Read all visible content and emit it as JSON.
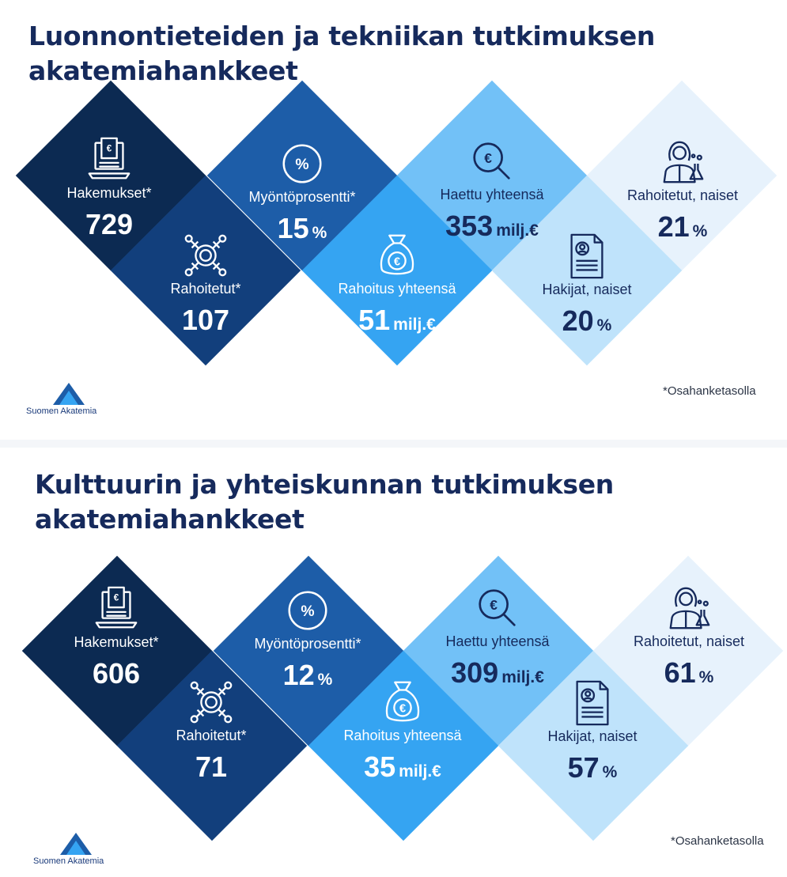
{
  "colors": {
    "navy": "#0c2a52",
    "dark_blue": "#123f7c",
    "blue": "#1d67b2",
    "bright_blue": "#35a4f2",
    "sky": "#72c1f7",
    "light_sky": "#bfe3fb",
    "pale": "#e7f2fc",
    "title": "#162a5c"
  },
  "panels": [
    {
      "title_line1": "Luonnontieteiden ja tekniikan tutkimuksen",
      "title_line2": "akatemiahankkeet",
      "hakemukset": {
        "label": "Hakemukset*",
        "value": "729",
        "icon": "laptop-invoice-icon"
      },
      "rahoitetut": {
        "label": "Rahoitetut*",
        "value": "107",
        "icon": "network-nodes-icon"
      },
      "myontoprosentti": {
        "label": "Myöntöprosentti*",
        "value": "15",
        "unit": "%",
        "icon": "percent-circle-icon"
      },
      "rahoitus_yhteensa": {
        "label": "Rahoitus yhteensä",
        "value": "51",
        "unit": "milj.€",
        "icon": "money-bag-icon"
      },
      "haettu_yhteensa": {
        "label": "Haettu yhteensä",
        "value": "353",
        "unit": "milj.€",
        "icon": "euro-search-icon"
      },
      "hakijat_naiset": {
        "label": "Hakijat, naiset",
        "value": "20",
        "unit": "%",
        "icon": "document-profile-icon"
      },
      "rahoitetut_naiset": {
        "label": "Rahoitetut, naiset",
        "value": "21",
        "unit": "%",
        "icon": "woman-scientist-icon"
      },
      "footnote": "*Osahanketasolla",
      "logo_text": "Suomen Akatemia"
    },
    {
      "title_line1": "Kulttuurin ja yhteiskunnan tutkimuksen",
      "title_line2": "akatemiahankkeet",
      "hakemukset": {
        "label": "Hakemukset*",
        "value": "606",
        "icon": "laptop-invoice-icon"
      },
      "rahoitetut": {
        "label": "Rahoitetut*",
        "value": "71",
        "icon": "network-nodes-icon"
      },
      "myontoprosentti": {
        "label": "Myöntöprosentti*",
        "value": "12",
        "unit": "%",
        "icon": "percent-circle-icon"
      },
      "rahoitus_yhteensa": {
        "label": "Rahoitus yhteensä",
        "value": "35",
        "unit": "milj.€",
        "icon": "money-bag-icon"
      },
      "haettu_yhteensa": {
        "label": "Haettu yhteensä",
        "value": "309",
        "unit": "milj.€",
        "icon": "euro-search-icon"
      },
      "hakijat_naiset": {
        "label": "Hakijat, naiset",
        "value": "57",
        "unit": "%",
        "icon": "document-profile-icon"
      },
      "rahoitetut_naiset": {
        "label": "Rahoitetut, naiset",
        "value": "61",
        "unit": "%",
        "icon": "woman-scientist-icon"
      },
      "footnote": "*Osahanketasolla",
      "logo_text": "Suomen Akatemia"
    }
  ]
}
